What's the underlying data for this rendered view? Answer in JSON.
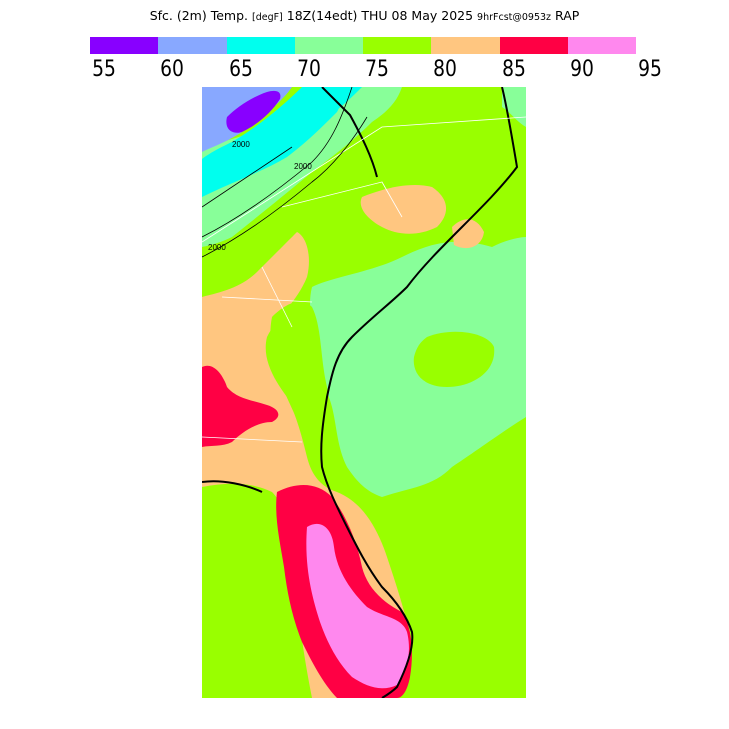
{
  "title": {
    "field": "Sfc. (2m) Temp.",
    "units": "[degF]",
    "valid_time": "18Z(14edt) THU 08 May 2025",
    "forecast": "9hrFcst@0953z",
    "model": "RAP"
  },
  "colorbar": {
    "labels": [
      "55",
      "60",
      "65",
      "70",
      "75",
      "80",
      "85",
      "90",
      "95"
    ],
    "colors": [
      "#8800ff",
      "#88a8ff",
      "#00ffee",
      "#88ff99",
      "#99ff00",
      "#ffc680",
      "#ff0044",
      "#ff88ee"
    ]
  },
  "contour_labels": [
    "2000",
    "2000",
    "2000"
  ],
  "colors": {
    "warm_green": "#99ff00",
    "light_green": "#88ff99",
    "orange": "#ffc680",
    "red": "#ff0044",
    "pink": "#ff88ee",
    "cyan": "#00ffee",
    "blue": "#88a8ff",
    "purple": "#8800ff"
  }
}
